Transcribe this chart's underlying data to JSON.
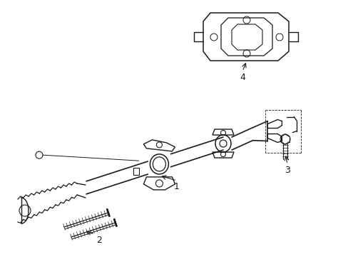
{
  "background_color": "#ffffff",
  "line_color": "#1a1a1a",
  "figsize": [
    4.89,
    3.6
  ],
  "dpi": 100,
  "xlim": [
    0,
    489
  ],
  "ylim": [
    0,
    360
  ]
}
